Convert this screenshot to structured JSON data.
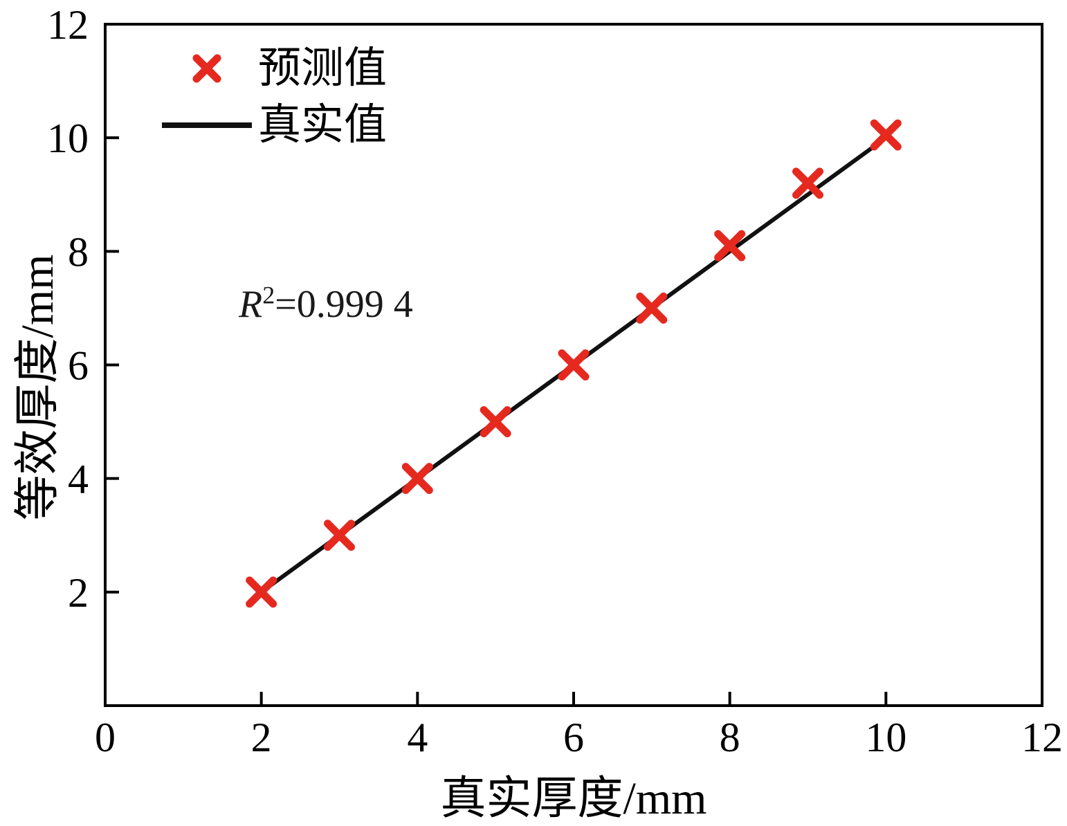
{
  "figure": {
    "xlabel": "真实厚度/mm",
    "ylabel": "等效厚度/mm",
    "annotation": {
      "var": "R",
      "exp": "2",
      "rest": "=0.999 4"
    }
  },
  "legend": {
    "items": [
      {
        "label": "预测值",
        "marker": "x-cross",
        "color": "#e5291f"
      },
      {
        "label": "真实值",
        "marker": "line",
        "color": "#111111"
      }
    ]
  },
  "chart_data": {
    "type": "scatter",
    "title": "",
    "xlabel": "真实厚度/mm",
    "ylabel": "等效厚度/mm",
    "xlim": [
      0,
      12
    ],
    "ylim": [
      0,
      12
    ],
    "xticks": [
      0,
      2,
      4,
      6,
      8,
      10,
      12
    ],
    "yticks": [
      2,
      4,
      6,
      8,
      10,
      12
    ],
    "grid": false,
    "legend_position": "top-left",
    "annotation": "R²=0.999 4",
    "series": [
      {
        "name": "真实值",
        "type": "line",
        "color": "#111111",
        "x": [
          2,
          10
        ],
        "y": [
          2,
          10
        ]
      },
      {
        "name": "预测值",
        "type": "scatter",
        "marker": "x",
        "color": "#e5291f",
        "x": [
          2,
          3,
          4,
          5,
          6,
          7,
          8,
          9,
          10
        ],
        "y": [
          2.0,
          3.0,
          4.0,
          5.0,
          6.0,
          7.0,
          8.1,
          9.2,
          10.05
        ]
      }
    ]
  }
}
